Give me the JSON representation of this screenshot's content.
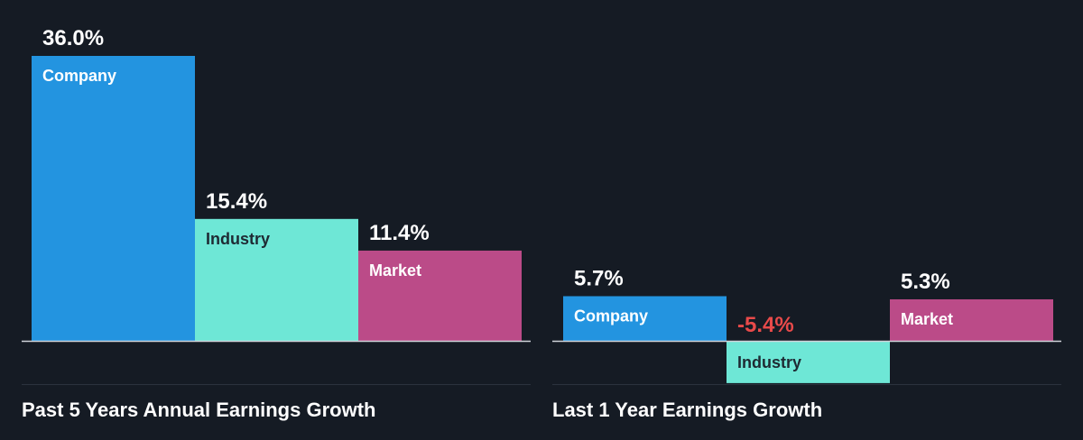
{
  "colors": {
    "background": "#151b24",
    "company": "#2394e0",
    "industry": "#6ee7d6",
    "market": "#bb4b88",
    "text_on_dark": "#ffffff",
    "negative_value": "#e84a4a",
    "bar_label_on_dark": "#ffffff",
    "bar_label_on_light": "#1e2a33",
    "axis": "#d0d4da",
    "divider": "#2b323d"
  },
  "chart_data": [
    {
      "type": "bar",
      "title": "Past 5 Years Annual Earnings Growth",
      "categories": [
        "Company",
        "Industry",
        "Market"
      ],
      "values": [
        36.0,
        15.4,
        11.4
      ],
      "value_labels": [
        "36.0%",
        "15.4%",
        "11.4%"
      ],
      "ylim": [
        0,
        36.0
      ],
      "grid": false,
      "legend": "none"
    },
    {
      "type": "bar",
      "title": "Last 1 Year Earnings Growth",
      "categories": [
        "Company",
        "Industry",
        "Market"
      ],
      "values": [
        5.7,
        -5.4,
        5.3
      ],
      "value_labels": [
        "5.7%",
        "-5.4%",
        "5.3%"
      ],
      "ylim": [
        -5.4,
        5.7
      ],
      "grid": false,
      "legend": "none"
    }
  ]
}
